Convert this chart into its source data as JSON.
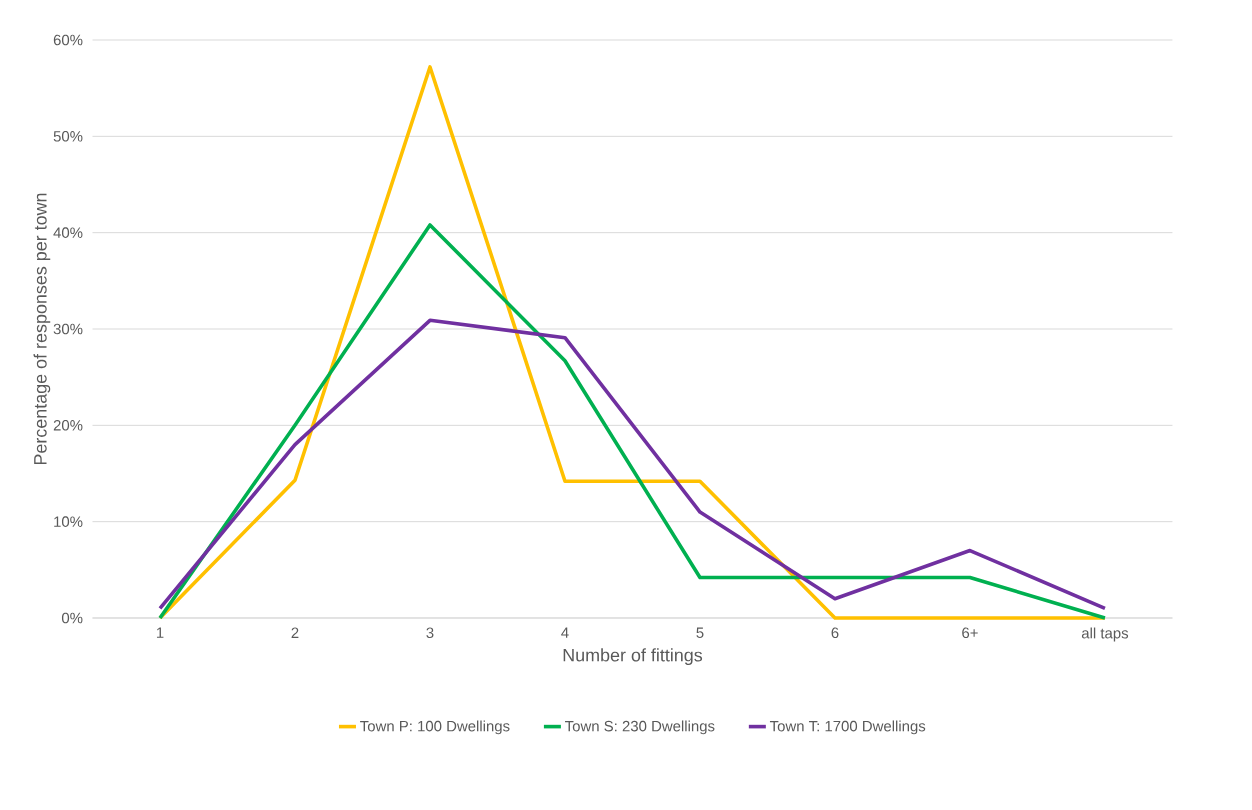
{
  "chart_data": {
    "type": "line",
    "xlabel": "Number of fittings",
    "ylabel": "Percentage of responses per town",
    "categories": [
      "1",
      "2",
      "3",
      "4",
      "5",
      "6",
      "6+",
      "all taps"
    ],
    "series": [
      {
        "name": "Town P: 100 Dwellings",
        "color": "#ffc000",
        "values": [
          0,
          14.3,
          57.2,
          14.2,
          14.2,
          0,
          0,
          0
        ]
      },
      {
        "name": "Town S: 230 Dwellings",
        "color": "#00b050",
        "values": [
          0,
          20.0,
          40.8,
          26.7,
          4.2,
          4.2,
          4.2,
          0
        ]
      },
      {
        "name": "Town T: 1700 Dwellings",
        "color": "#7030a0",
        "values": [
          1,
          18.0,
          30.9,
          29.1,
          11.0,
          2.0,
          7.0,
          1
        ]
      }
    ],
    "ylim": [
      0,
      60
    ],
    "yticks": [
      {
        "value": 0,
        "label": "0%"
      },
      {
        "value": 10,
        "label": "10%"
      },
      {
        "value": 20,
        "label": "20%"
      },
      {
        "value": 30,
        "label": "30%"
      },
      {
        "value": 40,
        "label": "40%"
      },
      {
        "value": 50,
        "label": "50%"
      },
      {
        "value": 60,
        "label": "60%"
      }
    ],
    "grid": "y",
    "legend": "bottom",
    "line_style": "solid"
  }
}
